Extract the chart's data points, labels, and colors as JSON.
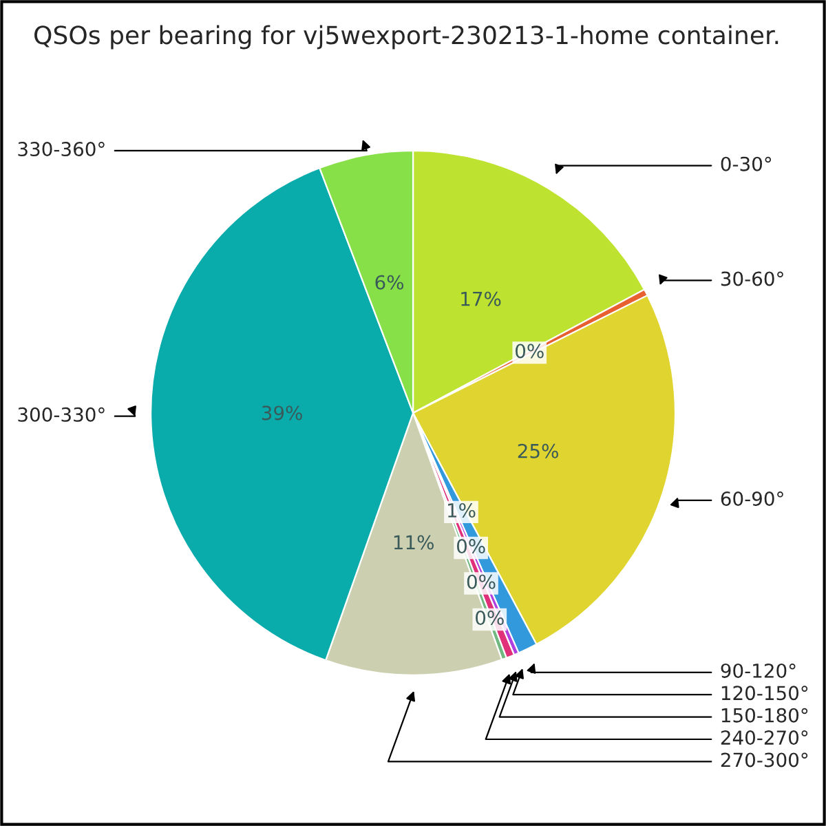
{
  "chart_data": {
    "type": "pie",
    "title": "QSOs per bearing for vj5wexport-230213-1-home container.",
    "categories": [
      "0-30°",
      "30-60°",
      "60-90°",
      "90-120°",
      "120-150°",
      "150-180°",
      "240-270°",
      "270-300°",
      "300-330°",
      "330-360°"
    ],
    "values": [
      17.2,
      0.4,
      24.6,
      1.2,
      0.3,
      0.5,
      0.3,
      10.9,
      38.8,
      5.8
    ],
    "value_labels": [
      "17%",
      "0%",
      "25%",
      "1%",
      "0%",
      "0%",
      "0%",
      "11%",
      "39%",
      "6%"
    ],
    "colors": [
      "#bde22f",
      "#e86030",
      "#e0d530",
      "#3399dd",
      "#b040e0",
      "#e0307a",
      "#70b880",
      "#cdd0b0",
      "#0aabab",
      "#88e048"
    ]
  }
}
